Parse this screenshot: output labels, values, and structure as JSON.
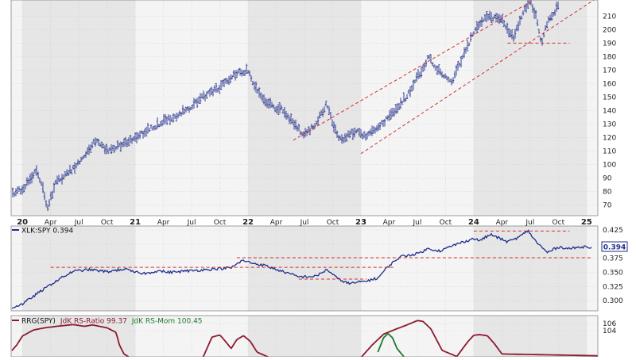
{
  "chart_data": [
    {
      "type": "bar",
      "style": "ohlc",
      "ylim": [
        62,
        222
      ],
      "yticks": [
        70,
        80,
        90,
        100,
        110,
        120,
        130,
        140,
        150,
        160,
        170,
        180,
        190,
        200,
        210
      ],
      "x_axis_labels": [
        "20",
        "Apr",
        "Jul",
        "Oct",
        "21",
        "Apr",
        "Jul",
        "Oct",
        "22",
        "Apr",
        "Jul",
        "Oct",
        "23",
        "Apr",
        "Jul",
        "Oct",
        "24",
        "Apr",
        "Jul",
        "Oct",
        "25"
      ],
      "x_range_years": [
        2019.9,
        2025.1
      ],
      "alternating_year_shading": true,
      "series_color": "#1f2d8a",
      "anchors": [
        [
          2019.9,
          78
        ],
        [
          2020.0,
          82
        ],
        [
          2020.13,
          96
        ],
        [
          2020.19,
          80
        ],
        [
          2020.22,
          68
        ],
        [
          2020.3,
          87
        ],
        [
          2020.45,
          97
        ],
        [
          2020.6,
          112
        ],
        [
          2020.65,
          118
        ],
        [
          2020.75,
          110
        ],
        [
          2020.9,
          115
        ],
        [
          2021.0,
          120
        ],
        [
          2021.25,
          132
        ],
        [
          2021.45,
          140
        ],
        [
          2021.6,
          150
        ],
        [
          2021.75,
          157
        ],
        [
          2021.88,
          167
        ],
        [
          2022.0,
          170
        ],
        [
          2022.05,
          160
        ],
        [
          2022.15,
          148
        ],
        [
          2022.25,
          140
        ],
        [
          2022.3,
          142
        ],
        [
          2022.4,
          130
        ],
        [
          2022.5,
          122
        ],
        [
          2022.6,
          130
        ],
        [
          2022.7,
          145
        ],
        [
          2022.76,
          128
        ],
        [
          2022.82,
          118
        ],
        [
          2022.95,
          125
        ],
        [
          2023.05,
          120
        ],
        [
          2023.25,
          135
        ],
        [
          2023.4,
          150
        ],
        [
          2023.55,
          172
        ],
        [
          2023.6,
          180
        ],
        [
          2023.7,
          168
        ],
        [
          2023.8,
          160
        ],
        [
          2023.9,
          180
        ],
        [
          2024.0,
          198
        ],
        [
          2024.1,
          210
        ],
        [
          2024.25,
          207
        ],
        [
          2024.35,
          194
        ],
        [
          2024.45,
          215
        ],
        [
          2024.5,
          223
        ],
        [
          2024.55,
          210
        ],
        [
          2024.6,
          190
        ],
        [
          2024.65,
          205
        ],
        [
          2024.75,
          218
        ]
      ],
      "trend_channel": {
        "color": "#d32f2f",
        "lower": [
          [
            2023.0,
            108
          ],
          [
            2025.1,
            224
          ]
        ],
        "upper": [
          [
            2022.4,
            118
          ],
          [
            2024.55,
            223
          ]
        ]
      },
      "support_line": {
        "y": 190,
        "x": [
          2024.3,
          2024.85
        ],
        "color": "#d32f2f"
      }
    },
    {
      "type": "line",
      "legend": "XLK:SPY 0.394",
      "legend_marker_color": "#1f2d8a",
      "ylim": [
        0.282,
        0.432
      ],
      "yticks": [
        0.3,
        0.325,
        0.35,
        0.375,
        0.4,
        0.425
      ],
      "ytick_labels": [
        "0.300",
        "0.325",
        "0.350",
        "0.375",
        "0.400",
        "0.425"
      ],
      "last_value_label": "0.394",
      "series": [
        {
          "name": "XLK:SPY",
          "color": "#1f2d8a",
          "anchors": [
            [
              2019.9,
              0.287
            ],
            [
              2020.0,
              0.294
            ],
            [
              2020.15,
              0.315
            ],
            [
              2020.3,
              0.335
            ],
            [
              2020.45,
              0.352
            ],
            [
              2020.6,
              0.355
            ],
            [
              2020.75,
              0.351
            ],
            [
              2020.9,
              0.356
            ],
            [
              2021.0,
              0.35
            ],
            [
              2021.1,
              0.348
            ],
            [
              2021.2,
              0.353
            ],
            [
              2021.3,
              0.35
            ],
            [
              2021.5,
              0.353
            ],
            [
              2021.7,
              0.356
            ],
            [
              2021.85,
              0.358
            ],
            [
              2021.95,
              0.371
            ],
            [
              2022.05,
              0.366
            ],
            [
              2022.15,
              0.362
            ],
            [
              2022.3,
              0.352
            ],
            [
              2022.45,
              0.342
            ],
            [
              2022.6,
              0.343
            ],
            [
              2022.7,
              0.355
            ],
            [
              2022.8,
              0.338
            ],
            [
              2022.9,
              0.33
            ],
            [
              2023.05,
              0.335
            ],
            [
              2023.15,
              0.34
            ],
            [
              2023.25,
              0.362
            ],
            [
              2023.35,
              0.378
            ],
            [
              2023.5,
              0.383
            ],
            [
              2023.6,
              0.392
            ],
            [
              2023.7,
              0.388
            ],
            [
              2023.85,
              0.4
            ],
            [
              2024.0,
              0.41
            ],
            [
              2024.05,
              0.406
            ],
            [
              2024.15,
              0.417
            ],
            [
              2024.3,
              0.404
            ],
            [
              2024.4,
              0.412
            ],
            [
              2024.48,
              0.424
            ],
            [
              2024.55,
              0.405
            ],
            [
              2024.65,
              0.385
            ],
            [
              2024.75,
              0.395
            ],
            [
              2024.85,
              0.392
            ],
            [
              2025.0,
              0.396
            ],
            [
              2025.05,
              0.394
            ]
          ]
        }
      ],
      "guide_lines": [
        {
          "y": 0.359,
          "x": [
            2020.25,
            2023.3
          ],
          "color": "#d32f2f"
        },
        {
          "y": 0.376,
          "x": [
            2021.9,
            2025.05
          ],
          "color": "#d32f2f"
        },
        {
          "y": 0.338,
          "x": [
            2022.45,
            2023.05
          ],
          "color": "#d32f2f"
        },
        {
          "y": 0.423,
          "x": [
            2024.0,
            2024.85
          ],
          "color": "#d32f2f"
        }
      ]
    },
    {
      "type": "line",
      "legend_prefix": "RRG(SPY)",
      "legend_ratio": "JdK RS-Ratio 99.37",
      "legend_momentum": "JdK RS-Mom 100.45",
      "ylim": [
        96.7,
        108.2
      ],
      "yticks": [
        104,
        106
      ],
      "ytick_labels": [
        "104",
        "106"
      ],
      "series": [
        {
          "name": "JdK RS-Ratio",
          "color": "#8b1a2e",
          "anchors": [
            [
              2019.9,
              98.2
            ],
            [
              2019.95,
              100.0
            ],
            [
              2020.0,
              102.5
            ],
            [
              2020.1,
              104.2
            ],
            [
              2020.2,
              104.8
            ],
            [
              2020.3,
              105.2
            ],
            [
              2020.45,
              105.7
            ],
            [
              2020.55,
              105.2
            ],
            [
              2020.62,
              105.6
            ],
            [
              2020.75,
              104.8
            ],
            [
              2020.83,
              103.5
            ],
            [
              2020.86,
              100.0
            ],
            [
              2020.9,
              97.5
            ],
            [
              2021.0,
              95.5
            ],
            [
              2021.3,
              95.0
            ],
            [
              2021.6,
              96.5
            ],
            [
              2021.68,
              102.2
            ],
            [
              2021.75,
              102.8
            ],
            [
              2021.8,
              101.0
            ],
            [
              2021.85,
              99.0
            ],
            [
              2021.9,
              101.5
            ],
            [
              2021.96,
              102.6
            ],
            [
              2022.02,
              101.0
            ],
            [
              2022.08,
              98.0
            ],
            [
              2022.3,
              95.0
            ],
            [
              2022.7,
              95.0
            ],
            [
              2023.0,
              96.5
            ],
            [
              2023.1,
              100.0
            ],
            [
              2023.2,
              103.0
            ],
            [
              2023.3,
              104.3
            ],
            [
              2023.4,
              105.5
            ],
            [
              2023.5,
              106.8
            ],
            [
              2023.55,
              106.6
            ],
            [
              2023.62,
              104.5
            ],
            [
              2023.67,
              101.5
            ],
            [
              2023.72,
              98.5
            ],
            [
              2023.85,
              96.8
            ],
            [
              2023.95,
              101.0
            ],
            [
              2024.0,
              102.7
            ],
            [
              2024.05,
              102.9
            ],
            [
              2024.12,
              102.6
            ],
            [
              2024.18,
              100.5
            ],
            [
              2024.25,
              97.5
            ],
            [
              2025.1,
              97.0
            ]
          ]
        },
        {
          "name": "JdK RS-Mom",
          "color": "#1b7a2a",
          "anchors": [
            [
              2023.15,
              98.0
            ],
            [
              2023.2,
              102.0
            ],
            [
              2023.24,
              103.2
            ],
            [
              2023.28,
              102.0
            ],
            [
              2023.32,
              99.0
            ],
            [
              2023.4,
              96.0
            ]
          ]
        }
      ]
    }
  ]
}
